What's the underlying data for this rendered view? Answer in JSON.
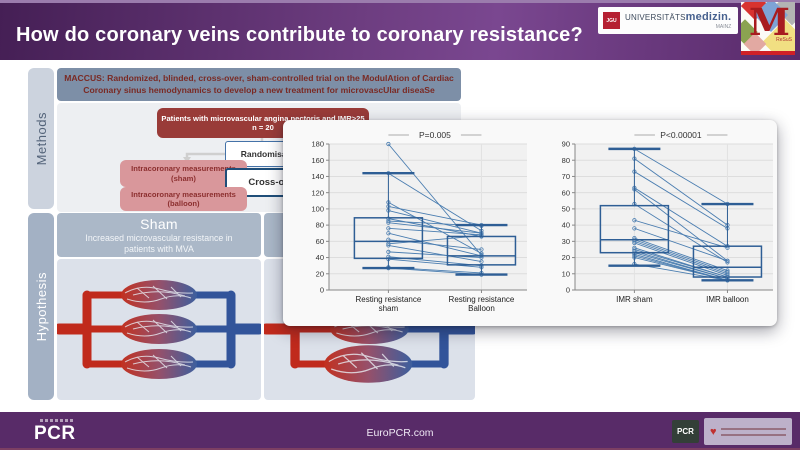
{
  "header": {
    "title": "How do coronary veins contribute to coronary resistance?",
    "uni_logo": {
      "abbr": "JGU",
      "name_regular": "UNIVERSITÄTS",
      "name_bold": "medizin.",
      "city": "MAINZ"
    },
    "m_logo": {
      "letter": "M",
      "sub": "ReSuS"
    }
  },
  "colors": {
    "header_purple": "#5d2d6f",
    "footer_purple": "#582b68",
    "box_dark_red": "#993b38",
    "box_pink": "#d9979b",
    "banner_blue_gray": "#7d8fa7",
    "boxplot_blue": "#2e5e95"
  },
  "methods": {
    "label": "Methods",
    "banner_line1": "MACCUS: Randomized, blinded, cross-over, sham-controlled trial on the ModulAtion of Cardiac",
    "banner_line2": "Coronary sinus hemodynamics to develop a new treatment for microvascUlar diseaSe",
    "flow": {
      "patients_line1": "Patients with microvascular angina pectoris and IMR>25",
      "patients_line2": "n = 20",
      "randomisation": "Randomisation",
      "sham_line1": "Intracoronary measurements",
      "sham_line2": "(sham)",
      "crossover": "Cross-over",
      "balloon_line1": "Intracoronary measurements",
      "balloon_line2": "(balloon)"
    }
  },
  "hypothesis": {
    "label": "Hypothesis",
    "sham_title": "Sham",
    "sham_subtitle": "Increased microvascular resistance in patients with MVA"
  },
  "footer": {
    "pcr_logo": "PCR",
    "site": "EuroPCR.com",
    "pcr_badge": "PCR"
  },
  "chart_data": [
    {
      "type": "paired-boxplot",
      "title": "P=0.005",
      "ylim": [
        0,
        180
      ],
      "ytick": 20,
      "grid": true,
      "categories": [
        [
          "Resting resistance",
          "sham"
        ],
        [
          "Resting resistance",
          "Balloon"
        ]
      ],
      "boxes": [
        {
          "low": 27,
          "q1": 39,
          "median": 60,
          "q3": 89,
          "high": 144
        },
        {
          "low": 19,
          "q1": 31,
          "median": 42,
          "q3": 66,
          "high": 80
        }
      ],
      "pairs": [
        [
          180,
          43
        ],
        [
          144,
          73
        ],
        [
          108,
          45
        ],
        [
          103,
          80
        ],
        [
          98,
          70
        ],
        [
          88,
          66
        ],
        [
          85,
          79
        ],
        [
          83,
          70
        ],
        [
          76,
          68
        ],
        [
          70,
          42
        ],
        [
          62,
          50
        ],
        [
          57,
          67
        ],
        [
          55,
          35
        ],
        [
          47,
          40
        ],
        [
          41,
          30
        ],
        [
          38,
          28
        ],
        [
          28,
          21
        ],
        [
          27,
          19
        ]
      ]
    },
    {
      "type": "paired-boxplot",
      "title": "P<0.00001",
      "ylim": [
        0,
        90
      ],
      "ytick": 10,
      "grid": true,
      "categories": [
        [
          "IMR sham"
        ],
        [
          "IMR balloon"
        ]
      ],
      "boxes": [
        {
          "low": 15,
          "q1": 23,
          "median": 31,
          "q3": 52,
          "high": 87
        },
        {
          "low": 6,
          "q1": 8,
          "median": 14,
          "q3": 27,
          "high": 53
        }
      ],
      "pairs": [
        [
          87,
          53
        ],
        [
          81,
          40
        ],
        [
          73,
          38
        ],
        [
          63,
          27
        ],
        [
          62,
          18
        ],
        [
          53,
          17
        ],
        [
          43,
          26
        ],
        [
          38,
          18
        ],
        [
          32,
          12
        ],
        [
          31,
          11
        ],
        [
          30,
          10
        ],
        [
          29,
          9
        ],
        [
          26,
          8
        ],
        [
          25,
          8
        ],
        [
          24,
          7
        ],
        [
          23,
          7
        ],
        [
          22,
          6
        ],
        [
          21,
          6
        ],
        [
          20,
          6
        ],
        [
          16,
          6
        ]
      ]
    }
  ]
}
